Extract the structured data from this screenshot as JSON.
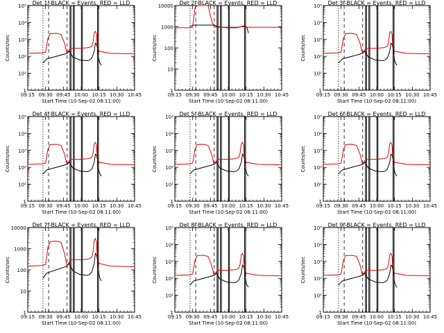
{
  "chart_data": {
    "type": "line",
    "ylabel": "Counts/sec",
    "xlabel": "Start Time (10-Sep-02 08:11:00)",
    "x_ticks": [
      "09:15",
      "09:30",
      "09:45",
      "10:00",
      "10:15",
      "10:30",
      "10:45"
    ],
    "time_range_min": [
      0,
      45
    ],
    "scale": "log",
    "colors": {
      "events": "#000000",
      "lld": "#e00000"
    },
    "time_markers": {
      "dotted": [
        6.4
      ],
      "dashed": [
        8.8,
        16.6
      ],
      "solid": [
        17.8,
        18.2,
        19.2,
        19.6,
        22.6,
        23.0,
        29.4,
        29.8
      ]
    },
    "panels": [
      {
        "title": "Det 1f-BLACK = Events, RED = LLD",
        "y_ticks": [
          "1",
          "10¹",
          "10²",
          "10³",
          "10⁴",
          "10⁵"
        ],
        "ylim": [
          1,
          100000
        ],
        "events": {
          "min": [
            6.4,
            7.5,
            8.0,
            16.6,
            17.5,
            19,
            22,
            25,
            26,
            27,
            28,
            28.5,
            29,
            29.5,
            30,
            30.4,
            31
          ],
          "values": [
            40,
            60,
            70,
            150,
            200,
            90,
            60,
            55,
            60,
            80,
            200,
            600,
            500,
            250,
            60,
            40,
            30
          ]
        },
        "lld": {
          "min": [
            0,
            6,
            7.5,
            8.5,
            9.5,
            12,
            14,
            15.5,
            16.5,
            17.3,
            18,
            22,
            25,
            26,
            27,
            27.5,
            28,
            28.5,
            29,
            29.2,
            30,
            35,
            45
          ],
          "values": [
            150,
            160,
            180,
            1200,
            2200,
            2300,
            2000,
            600,
            150,
            220,
            300,
            300,
            320,
            340,
            400,
            700,
            2500,
            3000,
            2000,
            500,
            200,
            150,
            140
          ]
        }
      },
      {
        "title": "Det 2f-BLACK = Events, RED = LLD",
        "y_ticks": [
          "1",
          "10",
          "100",
          "1000",
          "10000"
        ],
        "ylim": [
          1,
          10000
        ],
        "events": {
          "min": [
            6.4,
            7,
            7.5,
            16.6,
            18,
            22,
            26,
            28,
            29,
            29.5,
            30,
            30.4,
            31
          ],
          "values": [
            1000,
            1100,
            1200,
            1200,
            1000,
            900,
            900,
            1000,
            1000,
            1050,
            1000,
            900,
            500
          ]
        },
        "lld": {
          "min": [
            0,
            6,
            7.5,
            8.5,
            9.5,
            12,
            14,
            15.5,
            16.6,
            18,
            22,
            26,
            28,
            29,
            30,
            35,
            45
          ],
          "values": [
            900,
            900,
            950,
            8000,
            10000,
            10000,
            10000,
            2000,
            1000,
            950,
            950,
            950,
            1000,
            1100,
            950,
            950,
            950
          ]
        }
      },
      {
        "title": "Det 3f-BLACK = Events, RED = LLD",
        "y_ticks": [
          "1",
          "10¹",
          "10²",
          "10³",
          "10⁴",
          "10⁵"
        ],
        "ylim": [
          1,
          100000
        ],
        "events": {
          "min": [
            6.4,
            7.5,
            8.0,
            16.6,
            17.5,
            19,
            22,
            25,
            26,
            27,
            28,
            28.5,
            29,
            29.5,
            30,
            30.4,
            31
          ],
          "values": [
            40,
            60,
            70,
            150,
            200,
            90,
            60,
            55,
            60,
            80,
            200,
            600,
            500,
            250,
            60,
            40,
            30
          ]
        },
        "lld": {
          "min": [
            0,
            6,
            7.5,
            8.5,
            9.5,
            12,
            14,
            15.5,
            16.5,
            17.3,
            18,
            22,
            25,
            26,
            27,
            27.5,
            28,
            28.5,
            29,
            29.2,
            30,
            35,
            45
          ],
          "values": [
            150,
            160,
            180,
            1200,
            2200,
            2300,
            2000,
            600,
            150,
            220,
            300,
            300,
            320,
            340,
            400,
            700,
            2500,
            3000,
            2000,
            500,
            200,
            150,
            140
          ]
        }
      },
      {
        "title": "Det 4f-BLACK = Events, RED = LLD",
        "y_ticks": [
          "1",
          "10¹",
          "10²",
          "10³",
          "10⁴",
          "10⁵"
        ],
        "ylim": [
          1,
          100000
        ],
        "events": {
          "min": [
            6.4,
            7.5,
            8.0,
            16.6,
            17.5,
            19,
            22,
            25,
            26,
            27,
            28,
            28.5,
            29,
            29.5,
            30,
            30.4,
            31
          ],
          "values": [
            40,
            60,
            70,
            150,
            200,
            90,
            60,
            55,
            60,
            80,
            200,
            600,
            500,
            250,
            60,
            40,
            30
          ]
        },
        "lld": {
          "min": [
            0,
            6,
            7.5,
            8.5,
            9.5,
            12,
            14,
            15.5,
            16.5,
            17.3,
            18,
            22,
            25,
            26,
            27,
            27.5,
            28,
            28.5,
            29,
            29.2,
            30,
            35,
            45
          ],
          "values": [
            150,
            160,
            180,
            1200,
            2200,
            2300,
            2000,
            600,
            150,
            220,
            300,
            300,
            320,
            340,
            400,
            700,
            2500,
            3000,
            2000,
            500,
            200,
            150,
            140
          ]
        }
      },
      {
        "title": "Det 5f-BLACK = Events, RED = LLD",
        "y_ticks": [
          "1",
          "10¹",
          "10²",
          "10³",
          "10⁴",
          "10⁵"
        ],
        "ylim": [
          1,
          100000
        ],
        "events": {
          "min": [
            6.4,
            7.5,
            8.0,
            16.6,
            17.5,
            19,
            22,
            25,
            26,
            27,
            28,
            28.5,
            29,
            29.5,
            30,
            30.4,
            31
          ],
          "values": [
            40,
            60,
            70,
            150,
            200,
            90,
            60,
            55,
            60,
            80,
            200,
            600,
            500,
            250,
            60,
            40,
            30
          ]
        },
        "lld": {
          "min": [
            0,
            6,
            7.5,
            8.5,
            9.5,
            12,
            14,
            15.5,
            16.5,
            17.3,
            18,
            22,
            25,
            26,
            27,
            27.5,
            28,
            28.5,
            29,
            29.2,
            30,
            35,
            45
          ],
          "values": [
            150,
            160,
            180,
            1200,
            2200,
            2300,
            2000,
            600,
            150,
            220,
            300,
            300,
            320,
            340,
            400,
            700,
            2500,
            3000,
            2000,
            500,
            200,
            150,
            140
          ]
        }
      },
      {
        "title": "Det 6f-BLACK = Events, RED = LLD",
        "y_ticks": [
          "1",
          "10¹",
          "10²",
          "10³",
          "10⁴",
          "10⁵"
        ],
        "ylim": [
          1,
          100000
        ],
        "events": {
          "min": [
            6.4,
            7.5,
            8.0,
            16.6,
            17.5,
            19,
            22,
            25,
            26,
            27,
            28,
            28.5,
            29,
            29.5,
            30,
            30.4,
            31
          ],
          "values": [
            40,
            60,
            70,
            150,
            200,
            90,
            60,
            55,
            60,
            80,
            200,
            600,
            500,
            250,
            60,
            40,
            30
          ]
        },
        "lld": {
          "min": [
            0,
            6,
            7.5,
            8.5,
            9.5,
            12,
            14,
            15.5,
            16.5,
            17.3,
            18,
            22,
            25,
            26,
            27,
            27.5,
            28,
            28.5,
            29,
            29.2,
            30,
            35,
            45
          ],
          "values": [
            150,
            160,
            180,
            1200,
            2200,
            2300,
            2000,
            600,
            150,
            220,
            300,
            300,
            320,
            340,
            400,
            700,
            2500,
            3000,
            2000,
            500,
            200,
            150,
            140
          ]
        }
      },
      {
        "title": "Det 7f-BLACK = Events, RED = LLD",
        "y_ticks": [
          "1",
          "10",
          "100",
          "1000",
          "10000"
        ],
        "ylim": [
          1,
          10000
        ],
        "events": {
          "min": [
            6.4,
            7.5,
            8.0,
            16.6,
            17.5,
            19,
            22,
            25,
            26,
            27,
            28,
            28.5,
            29,
            29.5,
            30,
            30.4,
            31
          ],
          "values": [
            40,
            60,
            70,
            150,
            200,
            90,
            60,
            55,
            60,
            80,
            200,
            600,
            500,
            250,
            60,
            40,
            30
          ]
        },
        "lld": {
          "min": [
            0,
            6,
            7.5,
            8.5,
            9.5,
            12,
            14,
            15.5,
            16.5,
            17.3,
            18,
            22,
            25,
            26,
            27,
            27.5,
            28,
            28.5,
            29,
            29.2,
            30,
            35,
            45
          ],
          "values": [
            150,
            160,
            180,
            1200,
            2200,
            2300,
            2000,
            600,
            150,
            220,
            300,
            300,
            320,
            340,
            400,
            700,
            2500,
            3000,
            2000,
            500,
            200,
            150,
            140
          ]
        }
      },
      {
        "title": "Det 8f-BLACK = Events, RED = LLD",
        "y_ticks": [
          "1",
          "10¹",
          "10²",
          "10³",
          "10⁴",
          "10⁵"
        ],
        "ylim": [
          1,
          100000
        ],
        "events": {
          "min": [
            6.4,
            7.5,
            8.0,
            16.6,
            17.5,
            19,
            22,
            25,
            26,
            27,
            28,
            28.5,
            29,
            29.5,
            30,
            30.4,
            31
          ],
          "values": [
            40,
            60,
            70,
            150,
            200,
            90,
            60,
            55,
            60,
            80,
            200,
            600,
            500,
            250,
            60,
            40,
            30
          ]
        },
        "lld": {
          "min": [
            0,
            6,
            7.5,
            8.5,
            9.5,
            12,
            14,
            15.5,
            16.5,
            17.3,
            18,
            22,
            25,
            26,
            27,
            27.5,
            28,
            28.5,
            29,
            29.2,
            30,
            35,
            45
          ],
          "values": [
            150,
            160,
            180,
            1200,
            2200,
            2300,
            2000,
            600,
            150,
            220,
            300,
            300,
            320,
            340,
            400,
            700,
            2500,
            3000,
            2000,
            500,
            200,
            150,
            140
          ]
        }
      },
      {
        "title": "Det 9f-BLACK = Events, RED = LLD",
        "y_ticks": [
          "1",
          "10¹",
          "10²",
          "10³",
          "10⁴",
          "10⁵"
        ],
        "ylim": [
          1,
          100000
        ],
        "events": {
          "min": [
            6.4,
            7.5,
            8.0,
            16.6,
            17.5,
            19,
            22,
            25,
            26,
            27,
            28,
            28.5,
            29,
            29.5,
            30,
            30.4,
            31
          ],
          "values": [
            40,
            60,
            70,
            150,
            200,
            90,
            60,
            55,
            60,
            80,
            200,
            600,
            500,
            250,
            60,
            40,
            30
          ]
        },
        "lld": {
          "min": [
            0,
            6,
            7.5,
            8.5,
            9.5,
            12,
            14,
            15.5,
            16.5,
            17.3,
            18,
            22,
            25,
            26,
            27,
            27.5,
            28,
            28.5,
            29,
            29.2,
            30,
            35,
            45
          ],
          "values": [
            150,
            160,
            180,
            1200,
            2200,
            2300,
            2000,
            600,
            150,
            220,
            300,
            300,
            320,
            340,
            400,
            700,
            2500,
            3000,
            2000,
            500,
            200,
            150,
            140
          ]
        }
      }
    ]
  }
}
